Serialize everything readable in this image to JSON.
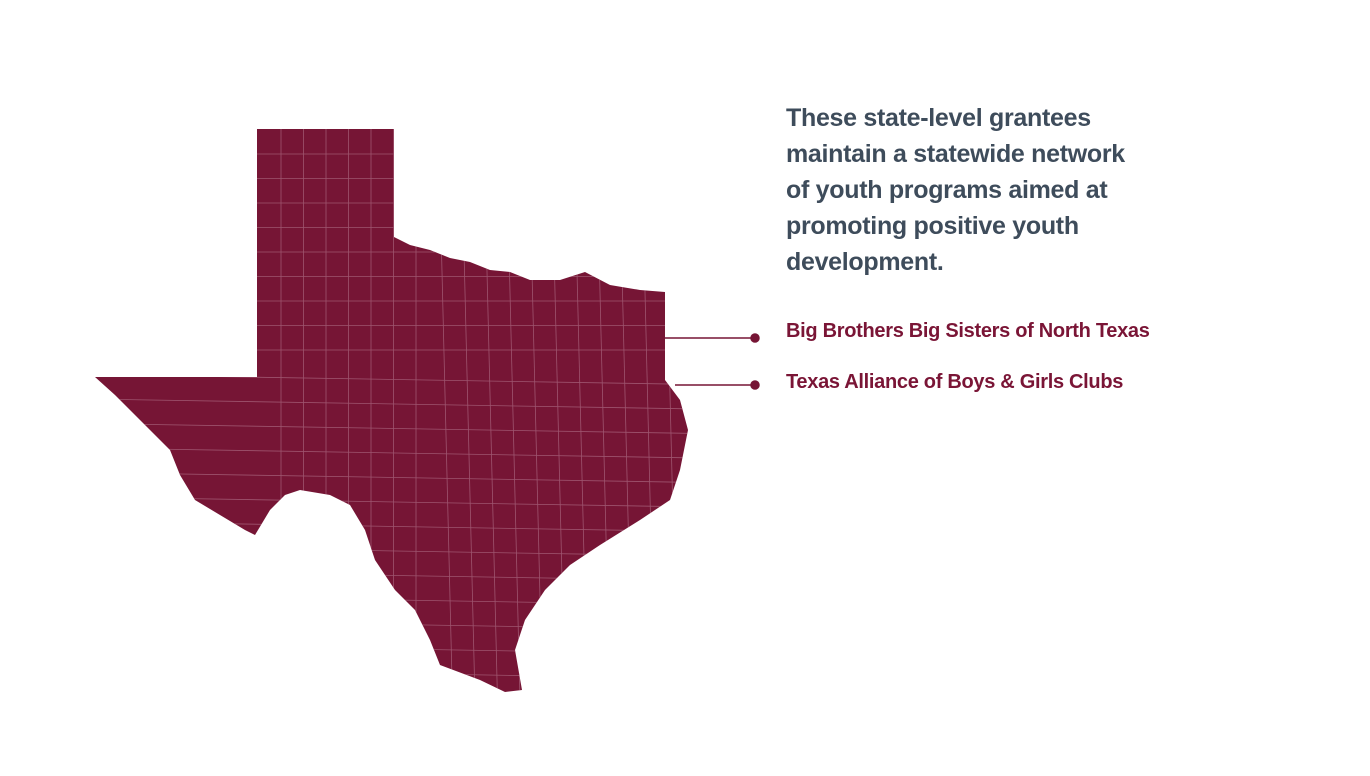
{
  "intro": {
    "lines": [
      "These state-level grantees",
      "maintain a statewide network",
      "of youth programs aimed at",
      "promoting positive youth",
      "development."
    ]
  },
  "grantees": [
    "Big Brothers Big Sisters of North Texas",
    "Texas Alliance of Boys & Girls Clubs"
  ]
}
